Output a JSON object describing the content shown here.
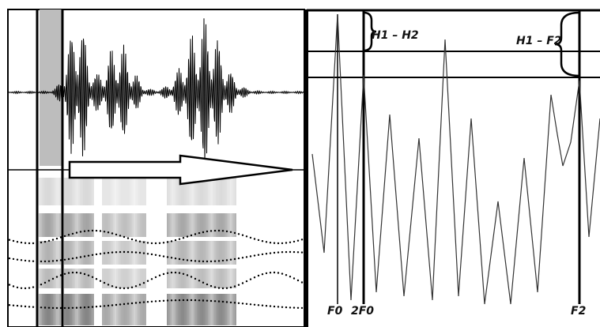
{
  "labels": {
    "h1_h2": "H1 – H2",
    "h1_f2": "H1 – F2",
    "f0": "F0",
    "two_f0": "2F0",
    "f2": "F2"
  }
}
